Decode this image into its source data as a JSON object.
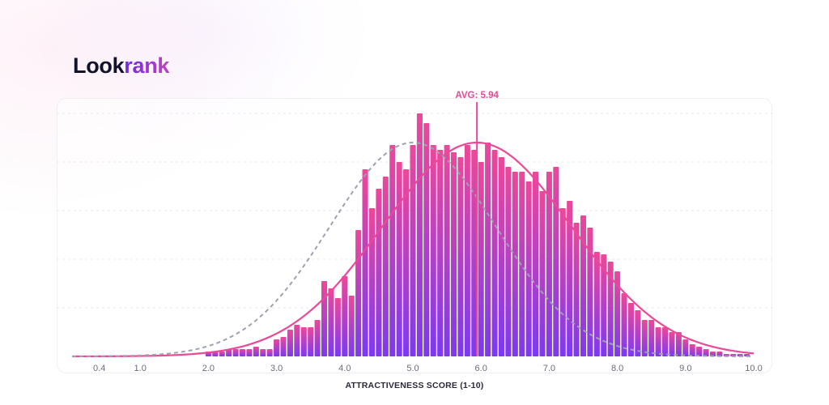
{
  "brand": {
    "logo_part_1": "Look",
    "logo_part_2": "rank",
    "accent_gradient": [
      "#6d2bd9",
      "#c33fc4"
    ]
  },
  "colors": {
    "bar_top": "#ec4899",
    "bar_bottom": "#7c3aed",
    "fit_curve": "#ec4899",
    "reference_curve": "#9ca3af",
    "avg_line": "#ec4899",
    "gridline": "#e7e7ee"
  },
  "chart_data": {
    "type": "bar",
    "title": "",
    "xlabel": "ATTRACTIVENESS SCORE (1-10)",
    "ylabel": "",
    "grid": true,
    "legend": "none",
    "x_tick_labels": [
      "0.4",
      "1.0",
      "2.0",
      "3.0",
      "4.0",
      "5.0",
      "6.0",
      "7.0",
      "8.0",
      "9.0",
      "10.0"
    ],
    "average": {
      "label": "AVG: 5.94",
      "value": 5.94
    },
    "y_unit_note": "relative frequency (max bar = 100)",
    "ylim": [
      0,
      100
    ],
    "bins": {
      "centers": [
        2.0,
        2.1,
        2.2,
        2.3,
        2.4,
        2.5,
        2.6,
        2.7,
        2.8,
        2.9,
        3.0,
        3.1,
        3.2,
        3.3,
        3.4,
        3.5,
        3.6,
        3.7,
        3.8,
        3.9,
        4.0,
        4.1,
        4.2,
        4.3,
        4.4,
        4.5,
        4.6,
        4.7,
        4.8,
        4.9,
        5.0,
        5.1,
        5.2,
        5.3,
        5.4,
        5.5,
        5.6,
        5.7,
        5.8,
        5.9,
        6.0,
        6.1,
        6.2,
        6.3,
        6.4,
        6.5,
        6.6,
        6.7,
        6.8,
        6.9,
        7.0,
        7.1,
        7.2,
        7.3,
        7.4,
        7.5,
        7.6,
        7.7,
        7.8,
        7.9,
        8.0,
        8.1,
        8.2,
        8.3,
        8.4,
        8.5,
        8.6,
        8.7,
        8.8,
        8.9,
        9.0,
        9.1,
        9.2,
        9.3,
        9.4,
        9.5,
        9.6,
        9.7,
        9.8,
        9.9
      ],
      "values": [
        2,
        2,
        2,
        3,
        3,
        3,
        3,
        4,
        3,
        3,
        7,
        8,
        11,
        13,
        12,
        12,
        15,
        31,
        28,
        24,
        33,
        25,
        52,
        77,
        61,
        69,
        74,
        87,
        80,
        77,
        87,
        100,
        96,
        87,
        85,
        87,
        84,
        82,
        87,
        85,
        80,
        88,
        85,
        82,
        78,
        76,
        76,
        72,
        76,
        68,
        76,
        78,
        61,
        64,
        55,
        58,
        53,
        43,
        42,
        39,
        35,
        26,
        22,
        19,
        15,
        15,
        12,
        12,
        10,
        10,
        7,
        5,
        4,
        3,
        2,
        2,
        1,
        1,
        1,
        1
      ]
    },
    "series": [
      {
        "kind": "bars"
      },
      {
        "kind": "line",
        "style": "solid",
        "curve": "gaussian",
        "mean": 5.94,
        "sd": 1.39,
        "peak": 88
      },
      {
        "kind": "line",
        "style": "dashed",
        "curve": "gaussian",
        "mean": 5.0,
        "sd": 1.22,
        "peak": 88
      }
    ],
    "x_range_visible": [
      0.0,
      10.0
    ]
  }
}
